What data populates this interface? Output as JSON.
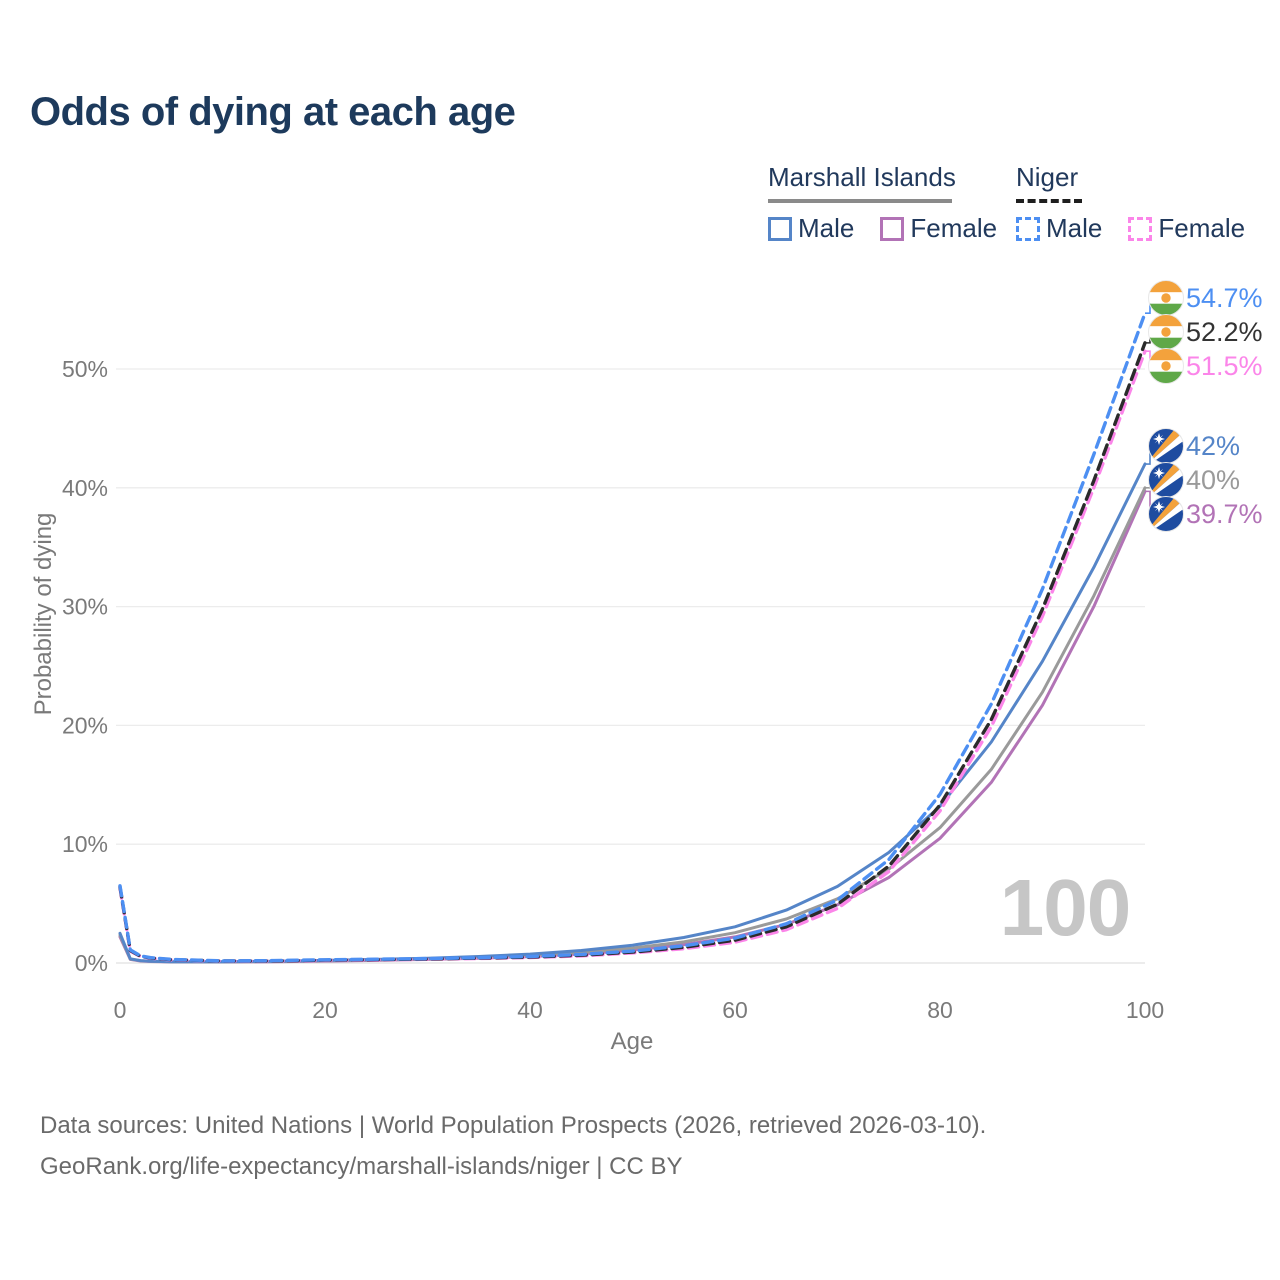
{
  "title": "Odds of dying at each age",
  "legend": {
    "groups": [
      {
        "label": "Marshall Islands",
        "underline_color": "#8a8a8a",
        "underline_dashed": false,
        "items": [
          {
            "label": "Male",
            "color": "#5585C8",
            "dashed": false
          },
          {
            "label": "Female",
            "color": "#B273B6",
            "dashed": false
          }
        ]
      },
      {
        "label": "Niger",
        "underline_color": "#1f1f1f",
        "underline_dashed": true,
        "items": [
          {
            "label": "Male",
            "color": "#4D8FF2",
            "dashed": true
          },
          {
            "label": "Female",
            "color": "#FB85E9",
            "dashed": true
          }
        ]
      }
    ]
  },
  "chart_data": {
    "type": "line",
    "title": "Odds of dying at each age",
    "xlabel": "Age",
    "ylabel": "Probability of dying",
    "xlim": [
      0,
      100
    ],
    "ylim": [
      0,
      56
    ],
    "grid": true,
    "legend_position": "top-right",
    "watermark": "100",
    "xticks": [
      0,
      20,
      40,
      60,
      80,
      100
    ],
    "ytick_labels": [
      "0%",
      "10%",
      "20%",
      "30%",
      "40%",
      "50%"
    ],
    "ytick_values": [
      0,
      10,
      20,
      30,
      40,
      50
    ],
    "x": [
      0,
      1,
      2,
      3,
      5,
      10,
      15,
      20,
      25,
      30,
      35,
      40,
      45,
      50,
      55,
      60,
      65,
      70,
      75,
      80,
      85,
      90,
      95,
      100
    ],
    "series": [
      {
        "name": "Niger Male",
        "group": "Niger",
        "sex": "Male",
        "color": "#4D8FF2",
        "label_color": "#4D8FF2",
        "dashed": true,
        "flag": "niger",
        "end_label": "54.7%",
        "end_value": 54.7,
        "values": [
          6.5,
          1.1,
          0.6,
          0.45,
          0.3,
          0.18,
          0.2,
          0.27,
          0.32,
          0.37,
          0.45,
          0.55,
          0.72,
          1.0,
          1.45,
          2.1,
          3.3,
          5.3,
          8.7,
          14.2,
          21.8,
          31.5,
          42.8,
          54.7
        ]
      },
      {
        "name": "Niger Both Sexes",
        "group": "Niger",
        "sex": "Both",
        "color": "#2B2B2B",
        "label_color": "#333333",
        "dashed": true,
        "flag": "niger",
        "end_label": "52.2%",
        "end_value": 52.2,
        "values": [
          6.4,
          1.05,
          0.57,
          0.42,
          0.28,
          0.17,
          0.18,
          0.24,
          0.29,
          0.34,
          0.41,
          0.5,
          0.66,
          0.92,
          1.32,
          1.92,
          3.05,
          4.95,
          8.15,
          13.3,
          20.5,
          29.8,
          40.6,
          52.2
        ]
      },
      {
        "name": "Niger Female",
        "group": "Niger",
        "sex": "Female",
        "color": "#FB85E9",
        "label_color": "#FB85E9",
        "dashed": true,
        "flag": "niger",
        "end_label": "51.5%",
        "end_value": 51.5,
        "values": [
          6.3,
          1.0,
          0.55,
          0.4,
          0.26,
          0.16,
          0.17,
          0.22,
          0.26,
          0.31,
          0.38,
          0.46,
          0.6,
          0.85,
          1.2,
          1.75,
          2.8,
          4.6,
          7.7,
          12.8,
          19.9,
          29.2,
          40.0,
          51.5
        ]
      },
      {
        "name": "Marshall Islands Male",
        "group": "Marshall Islands",
        "sex": "Male",
        "color": "#5585C8",
        "label_color": "#5585C8",
        "dashed": false,
        "flag": "marshall",
        "end_label": "42%",
        "end_value": 42,
        "values": [
          2.5,
          0.35,
          0.2,
          0.15,
          0.1,
          0.1,
          0.15,
          0.22,
          0.3,
          0.4,
          0.55,
          0.75,
          1.05,
          1.5,
          2.15,
          3.05,
          4.45,
          6.45,
          9.3,
          13.2,
          18.6,
          25.4,
          33.3,
          42.0
        ]
      },
      {
        "name": "Marshall Islands Both Sexes",
        "group": "Marshall Islands",
        "sex": "Both",
        "color": "#9A9A9A",
        "label_color": "#9A9A9A",
        "dashed": false,
        "flag": "marshall",
        "end_label": "40%",
        "end_value": 40,
        "values": [
          2.35,
          0.33,
          0.19,
          0.14,
          0.1,
          0.09,
          0.13,
          0.19,
          0.26,
          0.35,
          0.47,
          0.63,
          0.88,
          1.25,
          1.78,
          2.55,
          3.7,
          5.4,
          7.9,
          11.4,
          16.3,
          22.8,
          30.9,
          40.0
        ]
      },
      {
        "name": "Marshall Islands Female",
        "group": "Marshall Islands",
        "sex": "Female",
        "color": "#B273B6",
        "label_color": "#B273B6",
        "dashed": false,
        "flag": "marshall",
        "end_label": "39.7%",
        "end_value": 39.7,
        "values": [
          2.2,
          0.3,
          0.17,
          0.13,
          0.09,
          0.08,
          0.11,
          0.16,
          0.22,
          0.3,
          0.4,
          0.54,
          0.76,
          1.08,
          1.55,
          2.2,
          3.25,
          4.9,
          7.2,
          10.5,
          15.2,
          21.7,
          30.0,
          39.7
        ]
      }
    ]
  },
  "footer": {
    "line1": "Data sources: United Nations | World Population Prospects (2026, retrieved 2026-03-10).",
    "line2": "GeoRank.org/life-expectancy/marshall-islands/niger | CC BY"
  }
}
